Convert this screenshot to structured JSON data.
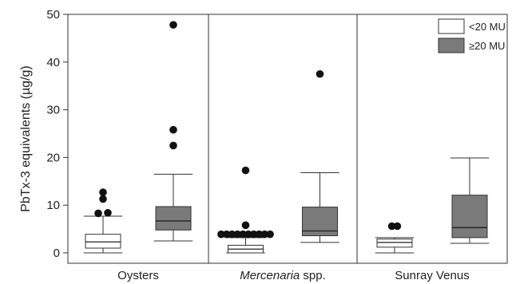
{
  "chart_data": {
    "type": "box",
    "ylabel": "PbTx-3 equivalents (µg/g)",
    "ylim": [
      0,
      50
    ],
    "yticks": [
      0,
      10,
      20,
      30,
      40,
      50
    ],
    "groups": [
      {
        "label": "Oysters",
        "label_prefix": "",
        "label_italic": "",
        "label_suffix": ""
      },
      {
        "label": "",
        "label_prefix": "",
        "label_italic": "Mercenaria",
        "label_suffix": " spp."
      },
      {
        "label": "Sunray Venus",
        "label_prefix": "",
        "label_italic": "",
        "label_suffix": ""
      }
    ],
    "series": [
      {
        "name": "<20 MU",
        "color": "#ffffff"
      },
      {
        "name": "≥20 MU",
        "color": "#7a7a7a"
      }
    ],
    "boxes": [
      {
        "group": 0,
        "series": 0,
        "whisker_low": 0,
        "q1": 1.0,
        "median": 2.3,
        "q3": 3.9,
        "whisker_high": 7.7,
        "outliers": [
          8.3,
          8.4,
          11.3,
          12.7
        ]
      },
      {
        "group": 0,
        "series": 1,
        "whisker_low": 2.5,
        "q1": 4.8,
        "median": 6.7,
        "q3": 9.7,
        "whisker_high": 16.5,
        "outliers": [
          22.5,
          25.8,
          47.8
        ]
      },
      {
        "group": 1,
        "series": 0,
        "whisker_low": 0,
        "q1": 0,
        "median": 0.8,
        "q3": 1.6,
        "whisker_high": 3.2,
        "outliers": [
          3.9,
          3.9,
          3.9,
          3.9,
          3.9,
          3.9,
          3.9,
          3.9,
          3.9,
          3.9,
          5.8,
          17.3
        ]
      },
      {
        "group": 1,
        "series": 1,
        "whisker_low": 2.2,
        "q1": 3.6,
        "median": 4.6,
        "q3": 9.6,
        "whisker_high": 16.8,
        "outliers": [
          37.5
        ]
      },
      {
        "group": 2,
        "series": 0,
        "whisker_low": 0,
        "q1": 1.2,
        "median": 2.2,
        "q3": 2.9,
        "whisker_high": 3.2,
        "outliers": [
          5.6,
          5.6
        ]
      },
      {
        "group": 2,
        "series": 1,
        "whisker_low": 2.0,
        "q1": 3.2,
        "median": 5.3,
        "q3": 12.1,
        "whisker_high": 19.9,
        "outliers": []
      }
    ],
    "legend_position": "top-right",
    "grid": false
  }
}
